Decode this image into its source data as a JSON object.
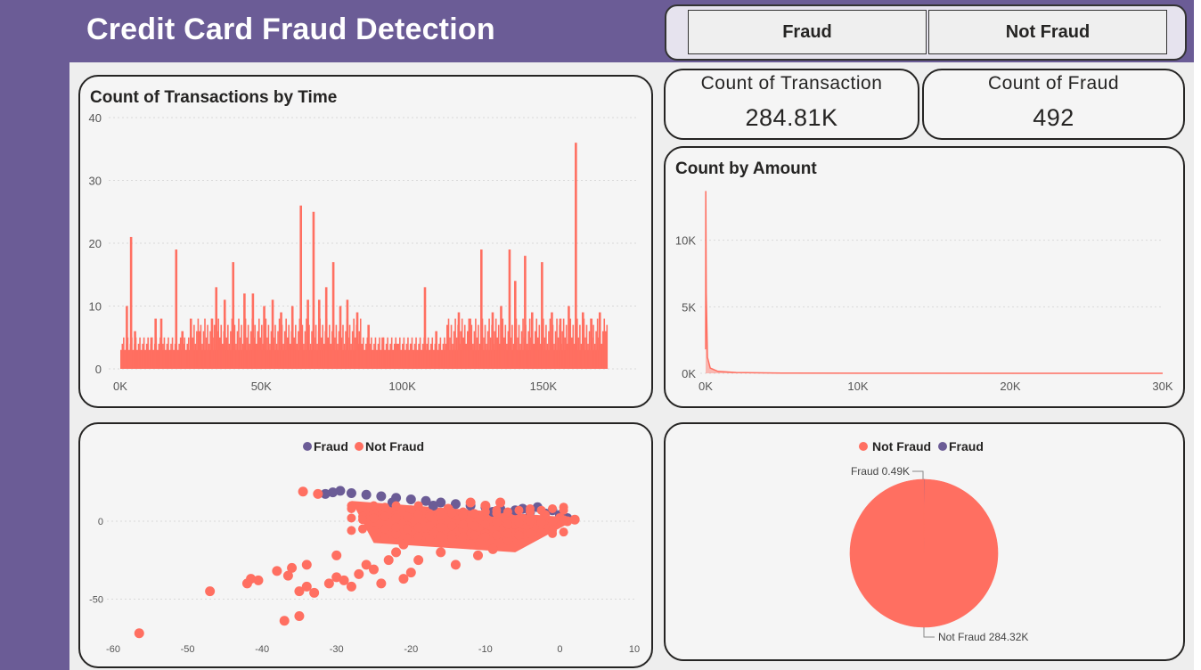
{
  "header": {
    "title": "Credit Card Fraud Detection"
  },
  "slicer": {
    "options": [
      "Fraud",
      "Not Fraud"
    ]
  },
  "kpis": [
    {
      "label": "Count of Transaction",
      "value": "284.81K"
    },
    {
      "label": "Count of Fraud",
      "value": "492"
    }
  ],
  "colors": {
    "fraud": "#6b5c96",
    "not_fraud": "#ff6f61",
    "grid": "#d9d9d9",
    "axis_text": "#555555"
  },
  "chart_data": [
    {
      "type": "bar",
      "title": "Count of Transactions by Time",
      "xlim": [
        0,
        172792
      ],
      "ylim": [
        0,
        40
      ],
      "xticks": [
        0,
        50000,
        100000,
        150000
      ],
      "xtick_labels": [
        "0K",
        "50K",
        "100K",
        "150K"
      ],
      "yticks": [
        0,
        10,
        20,
        30,
        40
      ],
      "ytick_labels": [
        "0",
        "10",
        "20",
        "30",
        "40"
      ],
      "baseline": 3,
      "peaks": [
        {
          "x": 2300,
          "y": 10
        },
        {
          "x": 3800,
          "y": 21
        },
        {
          "x": 5200,
          "y": 6
        },
        {
          "x": 11000,
          "y": 5
        },
        {
          "x": 12500,
          "y": 8
        },
        {
          "x": 14500,
          "y": 8
        },
        {
          "x": 19800,
          "y": 19
        },
        {
          "x": 22000,
          "y": 6
        },
        {
          "x": 25000,
          "y": 8
        },
        {
          "x": 28000,
          "y": 6
        },
        {
          "x": 32500,
          "y": 8
        },
        {
          "x": 34000,
          "y": 13
        },
        {
          "x": 37000,
          "y": 11
        },
        {
          "x": 40000,
          "y": 17
        },
        {
          "x": 44000,
          "y": 12
        },
        {
          "x": 47000,
          "y": 12
        },
        {
          "x": 51000,
          "y": 10
        },
        {
          "x": 54000,
          "y": 11
        },
        {
          "x": 57000,
          "y": 9
        },
        {
          "x": 61000,
          "y": 10
        },
        {
          "x": 64000,
          "y": 26
        },
        {
          "x": 66500,
          "y": 11
        },
        {
          "x": 68500,
          "y": 25
        },
        {
          "x": 70500,
          "y": 11
        },
        {
          "x": 73000,
          "y": 13
        },
        {
          "x": 75500,
          "y": 17
        },
        {
          "x": 78000,
          "y": 10
        },
        {
          "x": 80500,
          "y": 11
        },
        {
          "x": 84000,
          "y": 9
        },
        {
          "x": 88000,
          "y": 7
        },
        {
          "x": 93000,
          "y": 5
        },
        {
          "x": 98000,
          "y": 4
        },
        {
          "x": 103000,
          "y": 4
        },
        {
          "x": 108000,
          "y": 13
        },
        {
          "x": 112000,
          "y": 6
        },
        {
          "x": 116000,
          "y": 7
        },
        {
          "x": 120000,
          "y": 9
        },
        {
          "x": 124000,
          "y": 8
        },
        {
          "x": 128000,
          "y": 19
        },
        {
          "x": 132000,
          "y": 9
        },
        {
          "x": 135000,
          "y": 10
        },
        {
          "x": 138000,
          "y": 19
        },
        {
          "x": 140000,
          "y": 14
        },
        {
          "x": 143500,
          "y": 18
        },
        {
          "x": 146000,
          "y": 9
        },
        {
          "x": 149500,
          "y": 17
        },
        {
          "x": 153000,
          "y": 9
        },
        {
          "x": 156000,
          "y": 8
        },
        {
          "x": 159000,
          "y": 10
        },
        {
          "x": 161500,
          "y": 36
        },
        {
          "x": 164000,
          "y": 9
        },
        {
          "x": 167000,
          "y": 8
        },
        {
          "x": 170000,
          "y": 9
        },
        {
          "x": 172000,
          "y": 6
        }
      ]
    },
    {
      "type": "area",
      "title": "Count by Amount",
      "xlim": [
        0,
        30000
      ],
      "ylim": [
        0,
        15000
      ],
      "xticks": [
        0,
        10000,
        20000,
        30000
      ],
      "xtick_labels": [
        "0K",
        "10K",
        "20K",
        "30K"
      ],
      "yticks": [
        0,
        5000,
        10000
      ],
      "ytick_labels": [
        "0K",
        "5K",
        "10K"
      ],
      "points": [
        {
          "x": 0,
          "y": 1800
        },
        {
          "x": 10,
          "y": 13700
        },
        {
          "x": 40,
          "y": 6000
        },
        {
          "x": 120,
          "y": 1200
        },
        {
          "x": 300,
          "y": 400
        },
        {
          "x": 800,
          "y": 150
        },
        {
          "x": 2000,
          "y": 60
        },
        {
          "x": 5000,
          "y": 20
        },
        {
          "x": 10000,
          "y": 5
        },
        {
          "x": 25700,
          "y": 1
        },
        {
          "x": 30000,
          "y": 0
        }
      ]
    },
    {
      "type": "scatter",
      "legend": [
        "Fraud",
        "Not Fraud"
      ],
      "xlim": [
        -60,
        10
      ],
      "ylim": [
        -75,
        20
      ],
      "xticks": [
        -60,
        -50,
        -40,
        -30,
        -20,
        -10,
        0,
        10
      ],
      "yticks": [
        -50,
        0
      ],
      "series": [
        {
          "name": "Fraud",
          "points": [
            [
              -29.5,
              19.5
            ],
            [
              -30.5,
              18.5
            ],
            [
              -31.5,
              17.5
            ],
            [
              -28,
              18
            ],
            [
              -26,
              17
            ],
            [
              -24,
              16
            ],
            [
              -22,
              15
            ],
            [
              -20,
              14
            ],
            [
              -18,
              13
            ],
            [
              -16,
              12
            ],
            [
              -14,
              11
            ],
            [
              -12,
              10
            ],
            [
              -10,
              9
            ],
            [
              -8,
              8
            ],
            [
              -6,
              7
            ],
            [
              -4,
              6
            ],
            [
              -2,
              5
            ],
            [
              0,
              4
            ],
            [
              -22.5,
              12
            ],
            [
              -5,
              8
            ],
            [
              -3,
              9
            ],
            [
              -1,
              7
            ],
            [
              1,
              2
            ],
            [
              -9,
              6
            ],
            [
              -17,
              10
            ]
          ]
        },
        {
          "name": "Not Fraud",
          "points": [
            [
              -34.5,
              19
            ],
            [
              -32.5,
              17.5
            ],
            [
              -56.5,
              -72
            ],
            [
              -47,
              -45
            ],
            [
              -40.5,
              -38
            ],
            [
              -41.5,
              -37
            ],
            [
              -42,
              -40
            ],
            [
              -37,
              -64
            ],
            [
              -35,
              -61
            ],
            [
              -38,
              -32
            ],
            [
              -36,
              -30
            ],
            [
              -34,
              -28
            ],
            [
              -36.5,
              -35
            ],
            [
              -34,
              -42
            ],
            [
              -35,
              -45
            ],
            [
              -33,
              -46
            ],
            [
              -31,
              -40
            ],
            [
              -29,
              -38
            ],
            [
              -27,
              -34
            ],
            [
              -25,
              -31
            ],
            [
              -24,
              -40
            ],
            [
              -21,
              -37
            ],
            [
              -20,
              -33
            ],
            [
              -23,
              -25
            ],
            [
              -22,
              -20
            ],
            [
              -21,
              -15
            ],
            [
              -19,
              -25
            ],
            [
              -18,
              -10
            ],
            [
              -16,
              -20
            ],
            [
              -15,
              -12
            ],
            [
              -14,
              -28
            ],
            [
              -13,
              -5
            ],
            [
              -12,
              -15
            ],
            [
              -11,
              -22
            ],
            [
              -10,
              -8
            ],
            [
              -9,
              -18
            ],
            [
              -8,
              -3
            ],
            [
              -7,
              -12
            ],
            [
              -6,
              -2
            ],
            [
              -5,
              -8
            ],
            [
              -4,
              2
            ],
            [
              -3,
              -4
            ],
            [
              -2,
              4
            ],
            [
              -1,
              -1
            ],
            [
              0,
              2
            ],
            [
              1,
              0
            ],
            [
              2,
              1
            ],
            [
              -25,
              5
            ],
            [
              -20,
              7
            ],
            [
              -15,
              8
            ],
            [
              -10,
              10
            ],
            [
              -30,
              -36
            ],
            [
              -28,
              -42
            ],
            [
              -26,
              -28
            ],
            [
              -30,
              -22
            ],
            [
              -22,
              -8
            ],
            [
              -18,
              3
            ],
            [
              -14,
              4
            ],
            [
              -8,
              12
            ],
            [
              -12,
              12
            ]
          ]
        }
      ]
    },
    {
      "type": "pie",
      "legend": [
        "Not Fraud",
        "Fraud"
      ],
      "slices": [
        {
          "label": "Fraud",
          "value": 492,
          "display": "Fraud 0.49K"
        },
        {
          "label": "Not Fraud",
          "value": 284315,
          "display": "Not Fraud 284.32K"
        }
      ]
    }
  ]
}
